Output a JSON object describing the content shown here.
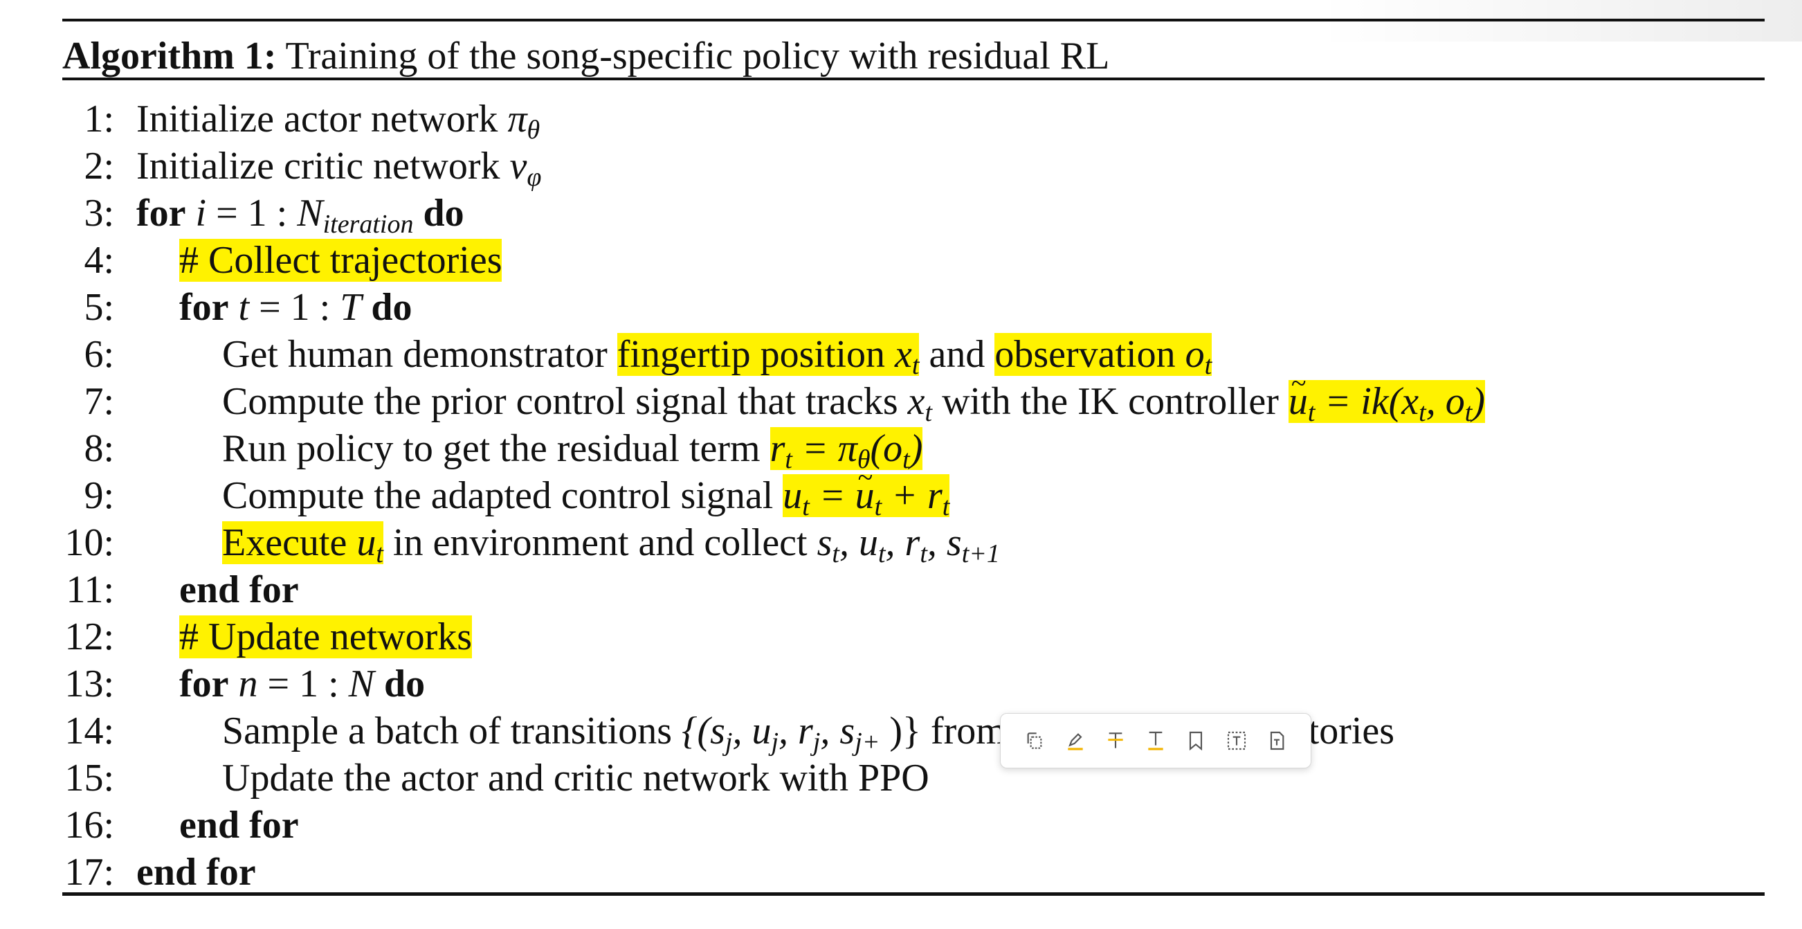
{
  "algorithm": {
    "label": "Algorithm 1:",
    "title": "Training of the song-specific policy with residual RL"
  },
  "lines": [
    {
      "num": "1:",
      "text1": "Initialize actor network ",
      "m1": "π",
      "s1": "θ"
    },
    {
      "num": "2:",
      "text1": "Initialize critic network ",
      "m1": "v",
      "s1": "φ"
    },
    {
      "num": "3:",
      "kw1": "for",
      "m1": "i",
      "t1": " = 1 : ",
      "m2": "N",
      "s2": "iteration",
      "kw2": "do"
    },
    {
      "num": "4:",
      "hl": "# Collect trajectories"
    },
    {
      "num": "5:",
      "kw1": "for",
      "m1": "t",
      "t1": " = 1 : ",
      "m2": "T",
      "kw2": "do"
    },
    {
      "num": "6:",
      "t1": "Get human demonstrator ",
      "hl1": "fingertip position ",
      "hm1": "x",
      "hs1": "t",
      "t2": " and ",
      "hl2": "observation ",
      "hm2": "o",
      "hs2": "t"
    },
    {
      "num": "7:",
      "t1": "Compute the prior control signal that tracks ",
      "m1": "x",
      "s1": "t",
      "t2": " with the IK controller ",
      "hm1": "u",
      "hs1": "t",
      "hmath": " = ik(x",
      "hs2": "t",
      "hmath2": ", o",
      "hs3": "t",
      "hmath3": ")"
    },
    {
      "num": "8:",
      "t1": "Run policy to get the residual term ",
      "hm1": "r",
      "hs1": "t",
      "hmath": " = π",
      "hs2": "θ",
      "hmath2": "(o",
      "hs3": "t",
      "hmath3": ")"
    },
    {
      "num": "9:",
      "t1": "Compute the adapted control signal ",
      "hm1": "u",
      "hs1": "t",
      "hmath": " = ",
      "hm2": "u",
      "hs2": "t",
      "hmath2": " + r",
      "hs3": "t"
    },
    {
      "num": "10:",
      "hl1": "Execute ",
      "hm1": "u",
      "hs1": "t",
      "t1": " in environment and collect ",
      "m1": "s",
      "s1": "t",
      "m2": ", u",
      "s2": "t",
      "m3": ", r",
      "s3": "t",
      "m4": ", s",
      "s4": "t+1"
    },
    {
      "num": "11:",
      "kw1": "end for"
    },
    {
      "num": "12:",
      "hl": "# Update networks"
    },
    {
      "num": "13:",
      "kw1": "for",
      "m1": "n",
      "t1": " = 1 : ",
      "m2": "N",
      "kw2": "do"
    },
    {
      "num": "14:",
      "t1": "Sample a batch of transitions ",
      "m1": "{(s",
      "s1": "j",
      "m2": ", u",
      "s2": "j",
      "m3": ", r",
      "s3": "j",
      "m4": ", s",
      "s4": "j+",
      "t2": "  )} from the collected trajectories"
    },
    {
      "num": "15:",
      "t1": "Update the actor and critic network with PPO"
    },
    {
      "num": "16:",
      "kw1": "end for"
    },
    {
      "num": "17:",
      "kw1": "end for"
    }
  ],
  "toolbar": {
    "icons": [
      "copy-icon",
      "highlight-icon",
      "strikethrough-icon",
      "underline-icon",
      "bookmark-icon",
      "text-box-icon",
      "translate-icon"
    ]
  },
  "colors": {
    "highlight": "#fff200",
    "text": "#111111"
  }
}
